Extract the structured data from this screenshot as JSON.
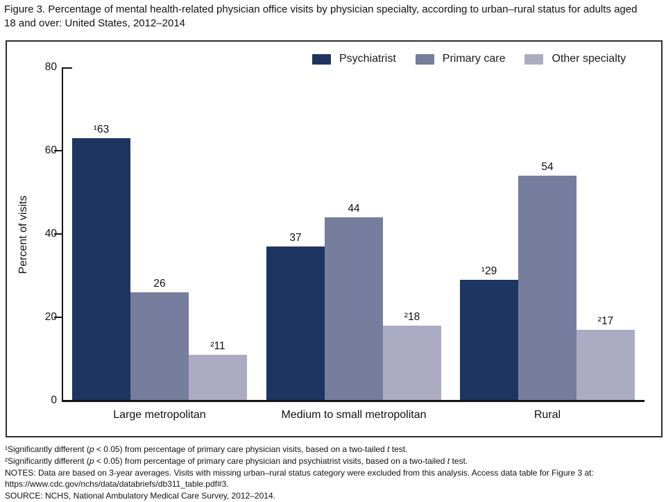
{
  "title": "Figure 3. Percentage of mental health-related physician office visits by physician specialty, according to urban–rural status for adults aged 18 and over: United States, 2012–2014",
  "chart_data": {
    "type": "bar",
    "title": "Percentage of mental health-related physician office visits by physician specialty, according to urban–rural status for adults aged 18 and over: United States, 2012–2014",
    "categories": [
      "Large metropolitan",
      "Medium to small metropolitan",
      "Rural"
    ],
    "series": [
      {
        "name": "Psychiatrist",
        "color": "#1e3461",
        "values": [
          63,
          37,
          29
        ],
        "footnote_marks": [
          "¹",
          "",
          "¹"
        ]
      },
      {
        "name": "Primary care",
        "color": "#767d9d",
        "values": [
          26,
          44,
          54
        ],
        "footnote_marks": [
          "",
          "",
          ""
        ]
      },
      {
        "name": "Other specialty",
        "color": "#abacc3",
        "values": [
          11,
          18,
          17
        ],
        "footnote_marks": [
          "²",
          "²",
          "²"
        ]
      }
    ],
    "xlabel": "",
    "ylabel": "Percent of visits",
    "ylim": [
      0,
      80
    ],
    "yticks": [
      0,
      20,
      40,
      60,
      80
    ],
    "grid": false,
    "legend_position": "top",
    "bar_labels": true
  },
  "footnotes": {
    "lines": [
      "¹Significantly different (p < 0.05) from percentage of primary care physician visits, based on a two-tailed t test.",
      "²Significantly different (p < 0.05) from percentage of primary care physician and psychiatrist visits, based on a two-tailed t test.",
      "NOTES: Data are based on 3-year averages. Visits with missing urban–rural status category were excluded from this analysis. Access data table for Figure 3 at:",
      "https://www.cdc.gov/nchs/data/databriefs/db311_table.pdf#3.",
      "SOURCE: NCHS, National Ambulatory Medical Care Survey, 2012–2014."
    ]
  }
}
